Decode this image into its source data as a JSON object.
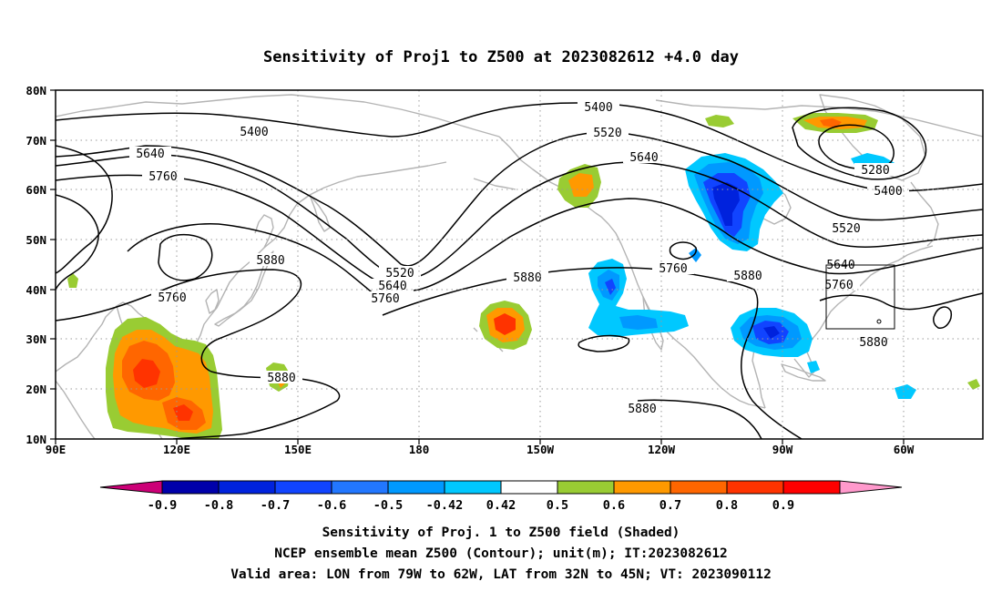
{
  "title": "Sensitivity of Proj1 to Z500 at 2023082612 +4.0 day",
  "map": {
    "lat_labels": [
      "80N",
      "70N",
      "60N",
      "50N",
      "40N",
      "30N",
      "20N",
      "10N"
    ],
    "lon_labels": [
      "90E",
      "120E",
      "150E",
      "180",
      "150W",
      "120W",
      "90W",
      "60W"
    ],
    "lon_range": [
      "90E",
      "45W"
    ],
    "lat_range": [
      "10N",
      "80N"
    ],
    "valid_box": {
      "lon_from": "79W",
      "lon_to": "62W",
      "lat_from": "32N",
      "lat_to": "45N"
    },
    "contour_labels": [
      "5400",
      "5400",
      "5400",
      "5520",
      "5520",
      "5520",
      "5640",
      "5640",
      "5640",
      "5640",
      "5760",
      "5760",
      "5760",
      "5760",
      "5760",
      "5880",
      "5880",
      "5880",
      "5880",
      "5880",
      "5880",
      "5280"
    ]
  },
  "colorbar": {
    "labels": [
      "-0.9",
      "-0.8",
      "-0.7",
      "-0.6",
      "-0.5",
      "-0.42",
      "0.42",
      "0.5",
      "0.6",
      "0.7",
      "0.8",
      "0.9"
    ],
    "colors": [
      "#0000aa",
      "#0022dd",
      "#1144ff",
      "#2277ff",
      "#0099ff",
      "#00c8ff",
      "#ffffff",
      "#99cc33",
      "#ff9900",
      "#ff6600",
      "#ff3300",
      "#ff0000"
    ],
    "under_color": "#cc0077",
    "over_color": "#ff99cc"
  },
  "shading_colors": {
    "neg_light": "#00c8ff",
    "neg_mid": "#0099ff",
    "neg_dark": "#0022dd",
    "neg_darkest": "#0000aa",
    "pos_green": "#99cc33",
    "pos_orange": "#ff9900",
    "pos_dorange": "#ff6600",
    "pos_red": "#ff3300"
  },
  "caption": [
    "Sensitivity of Proj. 1 to Z500 field (Shaded)",
    "NCEP ensemble mean Z500 (Contour); unit(m); IT:2023082612",
    "Valid area: LON from 79W to 62W, LAT from 32N to 45N; VT: 2023090112"
  ]
}
